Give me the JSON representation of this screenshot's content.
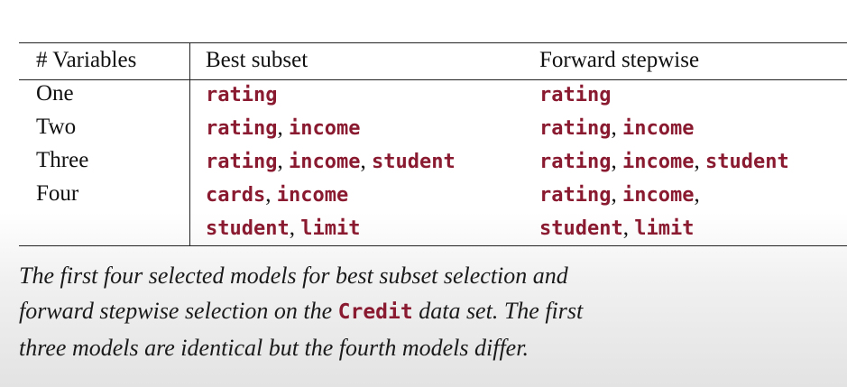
{
  "table": {
    "headers": [
      "# Variables",
      "Best subset",
      "Forward stepwise"
    ],
    "rows": [
      {
        "label": "One",
        "best": [
          [
            "rating"
          ]
        ],
        "forward": [
          [
            "rating"
          ]
        ]
      },
      {
        "label": "Two",
        "best": [
          [
            "rating",
            "income"
          ]
        ],
        "forward": [
          [
            "rating",
            "income"
          ]
        ]
      },
      {
        "label": "Three",
        "best": [
          [
            "rating",
            "income",
            "student"
          ]
        ],
        "forward": [
          [
            "rating",
            "income",
            "student"
          ]
        ]
      },
      {
        "label": "Four",
        "best": [
          [
            "cards",
            "income"
          ],
          [
            "student",
            "limit"
          ]
        ],
        "forward": [
          [
            "rating",
            "income",
            ""
          ],
          [
            "student",
            "limit"
          ]
        ]
      }
    ]
  },
  "caption": {
    "line1": "The first four selected models for best subset selection and",
    "line2_before": "forward stepwise selection on the",
    "line2_code": "Credit",
    "line2_after": "data set. The first",
    "line3": "three models are identical but the fourth models differ."
  },
  "colors": {
    "code": "#8a1a30",
    "text": "#111111",
    "rule": "#222222"
  }
}
